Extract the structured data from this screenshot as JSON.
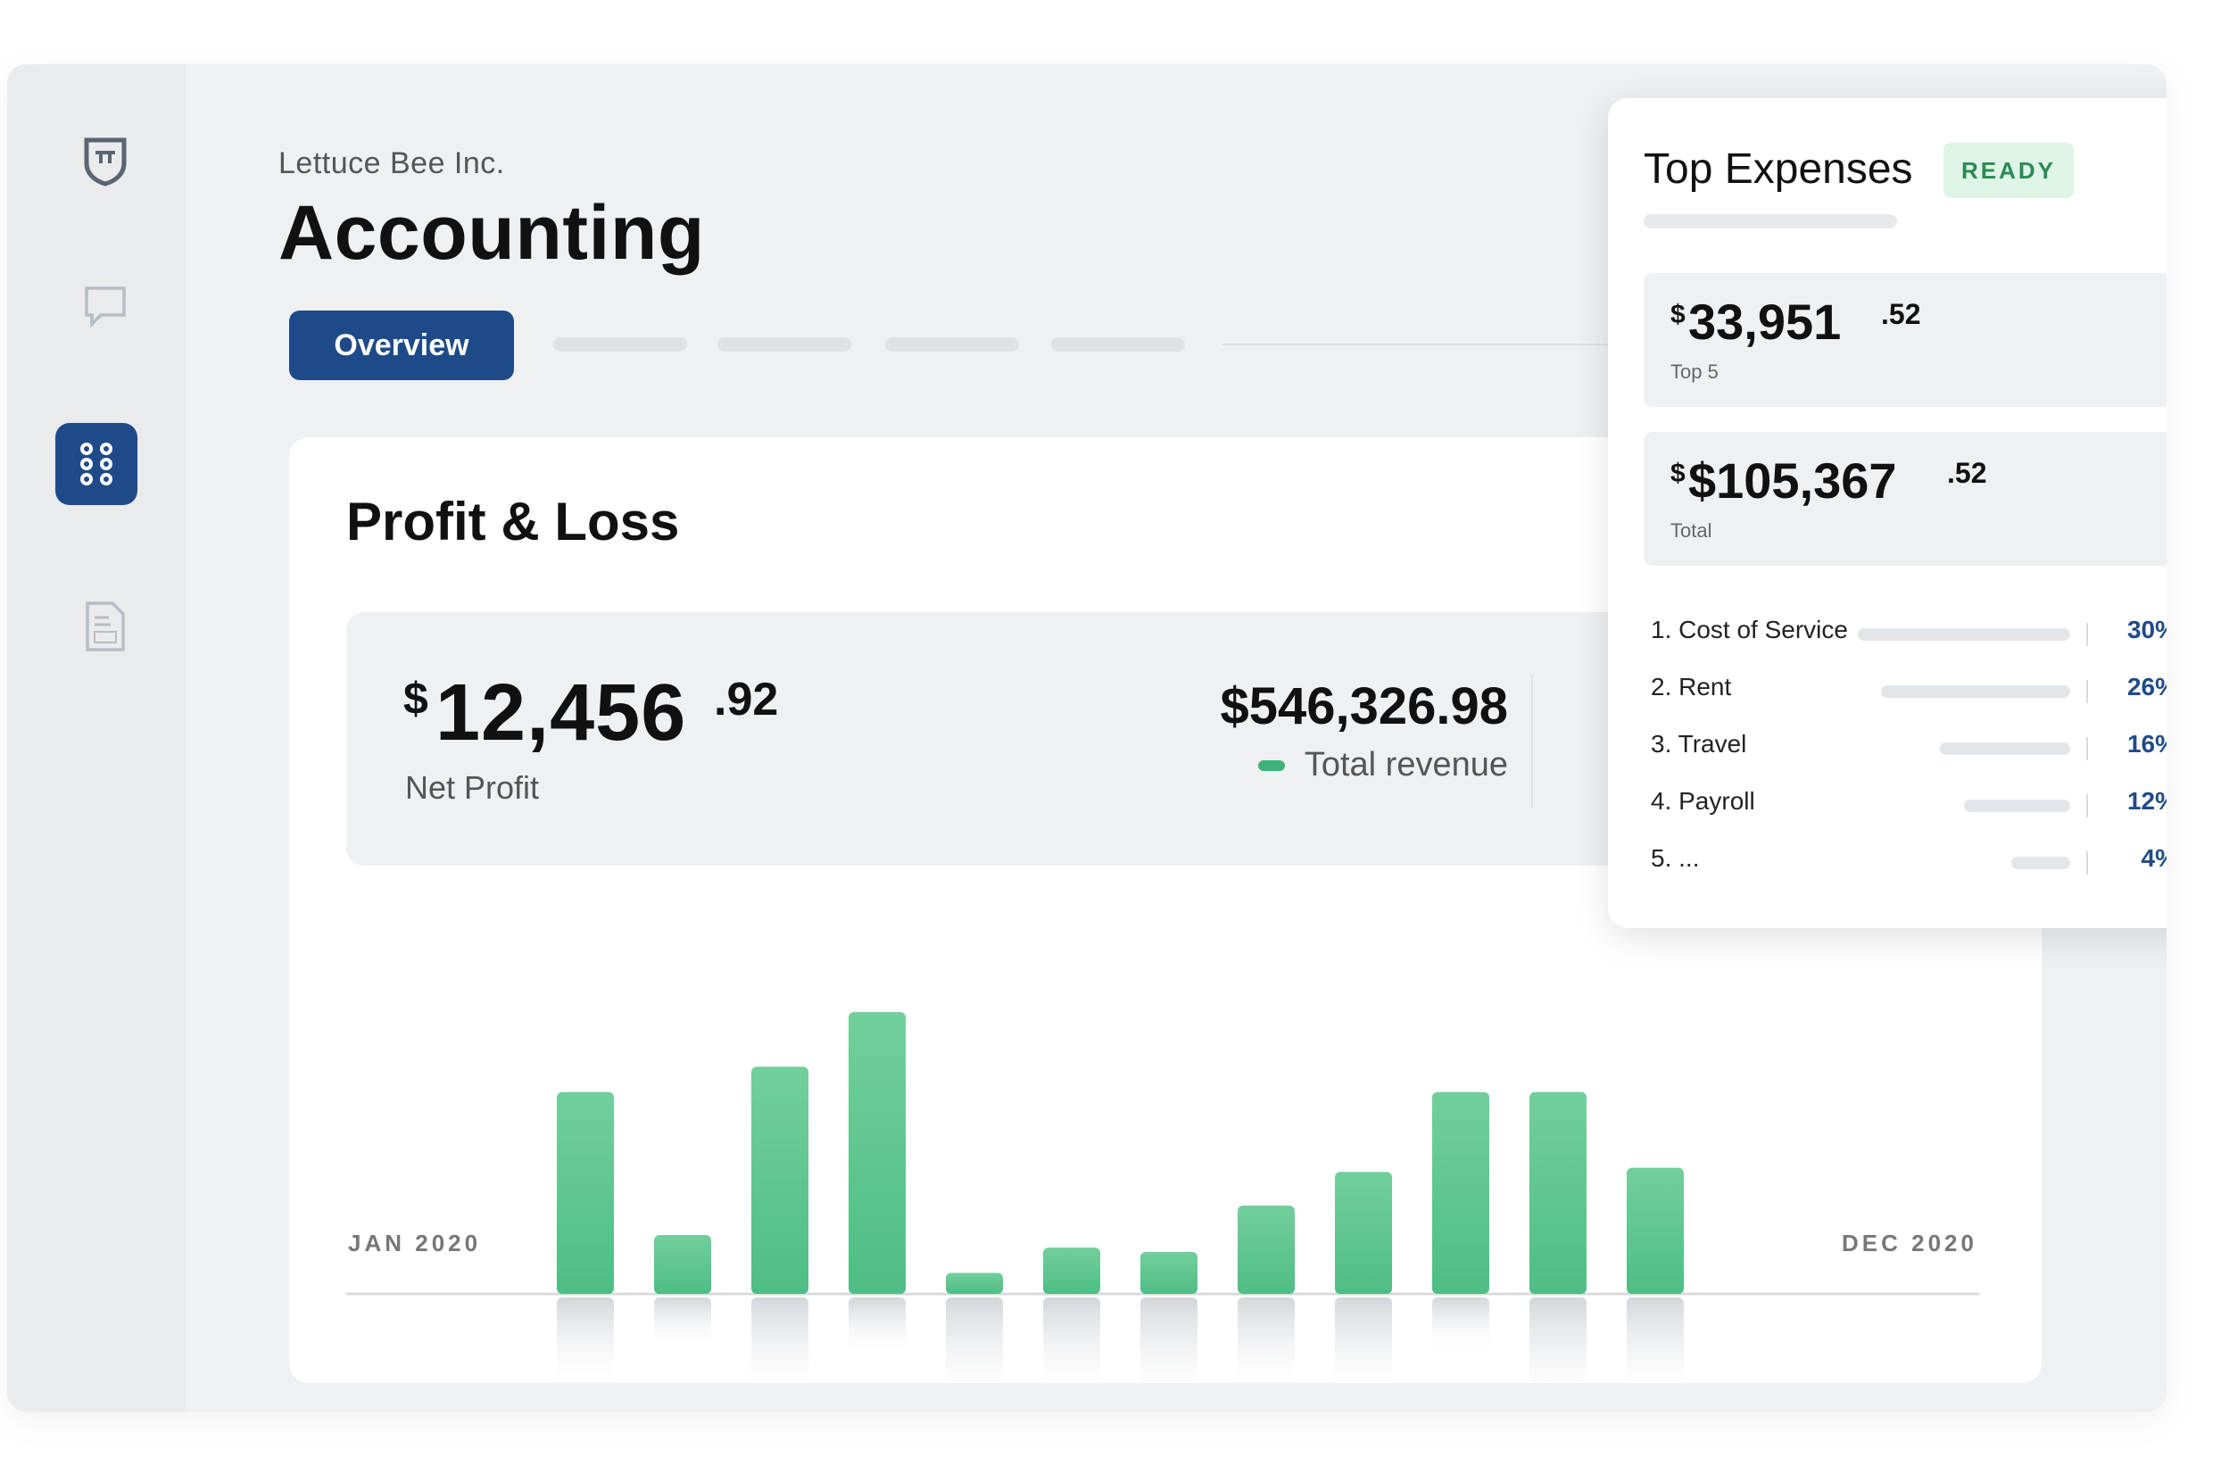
{
  "header": {
    "company": "Lettuce Bee Inc.",
    "title": "Accounting"
  },
  "tabs": {
    "active_label": "Overview"
  },
  "sidebar": {
    "icons": [
      "shield-icon",
      "chat-icon",
      "apps-icon",
      "tax-document-icon"
    ],
    "active": "apps-icon"
  },
  "pnl": {
    "title": "Profit & Loss",
    "net_profit": {
      "currency": "$",
      "main": "12,456",
      "decimal": ".92",
      "label": "Net Profit"
    },
    "revenue": {
      "value": "$546,326.98",
      "label": "Total revenue",
      "color": "#3fb27a"
    }
  },
  "chart_data": {
    "type": "bar",
    "x_start_label": "JAN 2020",
    "x_end_label": "DEC 2020",
    "values": [
      48,
      14,
      54,
      67,
      5,
      11,
      10,
      21,
      29,
      48,
      48,
      30
    ],
    "reflection_values": [
      20,
      11,
      22,
      13,
      24,
      22,
      24,
      21,
      23,
      12,
      25,
      23
    ],
    "bar_color": "#4fbd85"
  },
  "expenses": {
    "title": "Top Expenses",
    "badge": "READY",
    "top5": {
      "currency": "$",
      "main": "33,951",
      "decimal": ".52",
      "label": "Top 5"
    },
    "total": {
      "currency": "$",
      "main": "$105,367",
      "decimal": ".52",
      "label": "Total"
    },
    "items": [
      {
        "name": "1.  Cost of Service",
        "pct": "30%",
        "share": 0.3
      },
      {
        "name": "2. Rent",
        "pct": "26%",
        "share": 0.26
      },
      {
        "name": "3. Travel",
        "pct": "16%",
        "share": 0.16
      },
      {
        "name": "4. Payroll",
        "pct": "12%",
        "share": 0.12
      },
      {
        "name": "5. ...",
        "pct": "4%",
        "share": 0.04
      }
    ]
  }
}
